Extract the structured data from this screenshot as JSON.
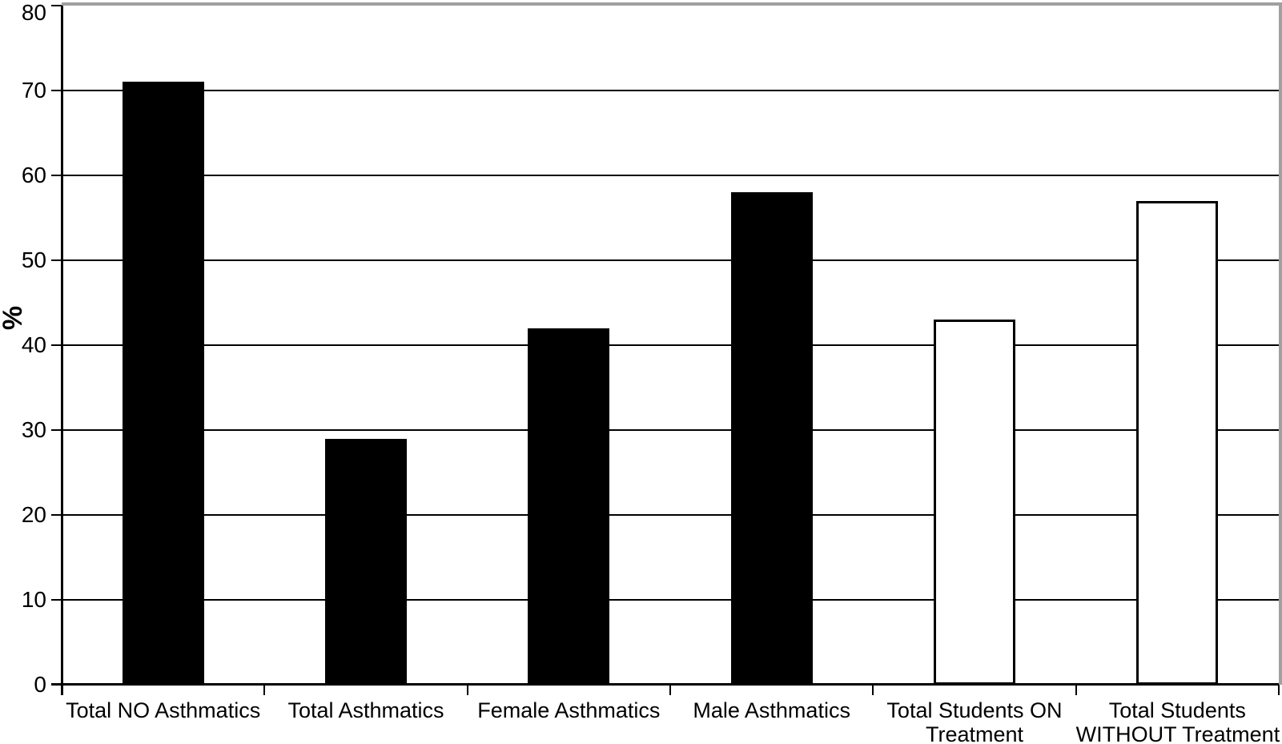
{
  "chart_data": {
    "type": "bar",
    "title": "",
    "xlabel": "",
    "ylabel": "%",
    "ylim": [
      0,
      80
    ],
    "yticks": [
      0,
      10,
      20,
      30,
      40,
      50,
      60,
      70,
      80
    ],
    "grid": true,
    "legend_visible": false,
    "categories": [
      "Total NO Asthmatics",
      "Total Asthmatics",
      "Female Asthmatics",
      "Male Asthmatics",
      "Total Students ON Treatment",
      "Total Students WITHOUT Treatment"
    ],
    "x_label_lines": [
      [
        "Total NO Asthmatics"
      ],
      [
        "Total Asthmatics"
      ],
      [
        "Female Asthmatics"
      ],
      [
        "Male Asthmatics"
      ],
      [
        "Total Students ON",
        "Treatment"
      ],
      [
        "Total Students",
        "WITHOUT Treatment"
      ]
    ],
    "series": [
      {
        "name": "Percentage of students",
        "values": [
          71,
          29,
          42,
          58,
          43,
          57
        ],
        "bar_fills": [
          "#000000",
          "#000000",
          "#000000",
          "#000000",
          "#ffffff",
          "#ffffff"
        ],
        "bar_border_color": "#000000"
      }
    ],
    "colors": {
      "axis": "#000000",
      "gridline": "#000000",
      "plot_border": "#a0a0a0",
      "background": "#ffffff",
      "text": "#000000"
    }
  }
}
